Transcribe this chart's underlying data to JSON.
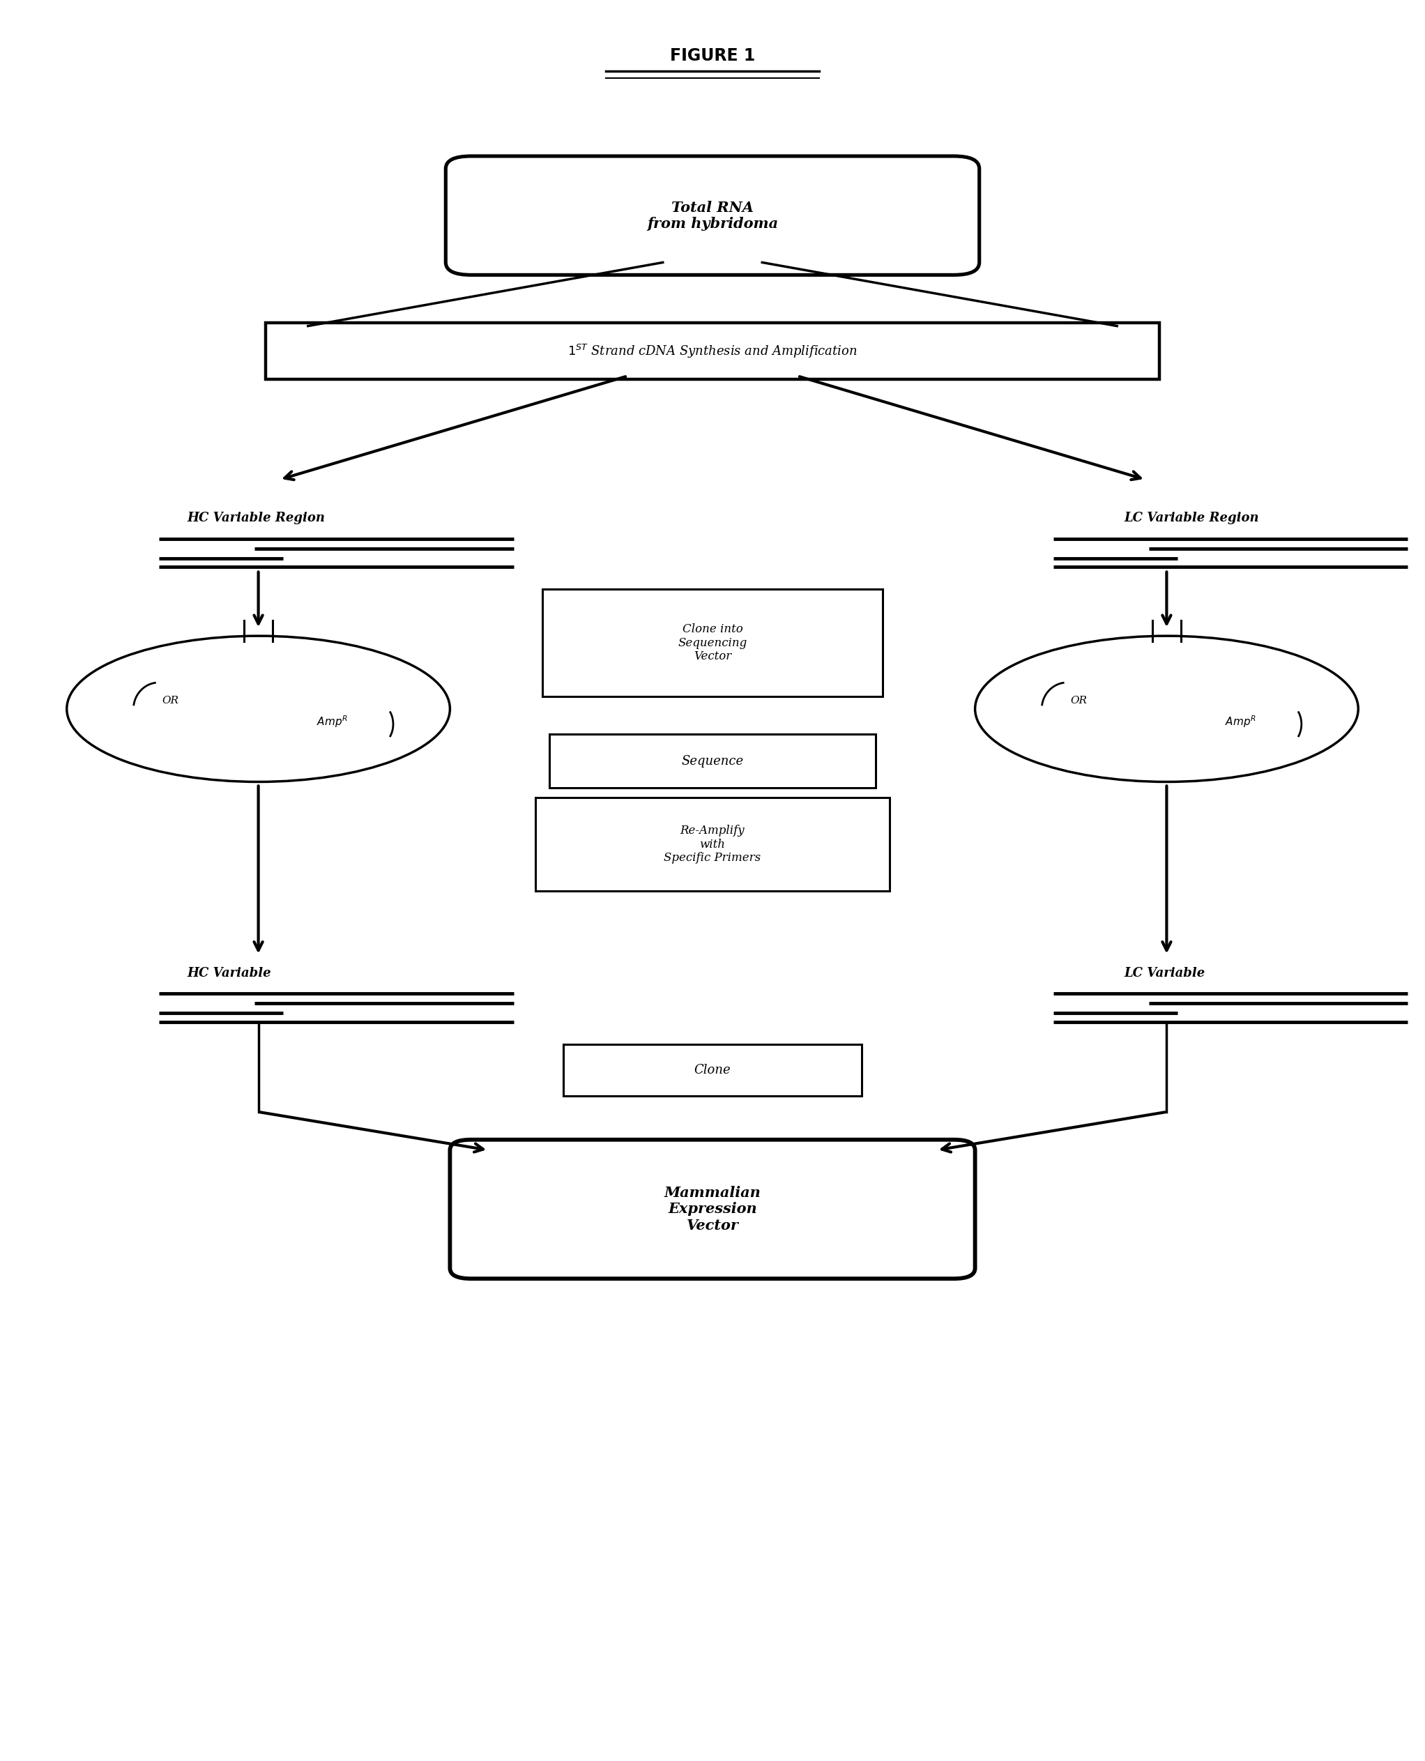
{
  "title": "FIGURE 1",
  "bg_color": "#ffffff",
  "box1_text": "Total RNA\nfrom hybridoma",
  "box2_text": "$1^{ST}$ Strand cDNA Synthesis and Amplification",
  "label_hc": "HC Variable Region",
  "label_lc": "LC Variable Region",
  "box_clone_seq": "Clone into\nSequencing\nVector",
  "box_sequence": "Sequence",
  "box_reamplify": "Re-Amplify\nwith\nSpecific Primers",
  "label_hc2": "HC Variable",
  "label_lc2": "LC Variable",
  "box_clone": "Clone",
  "box_mammalian": "Mammalian\nExpression\nVector"
}
